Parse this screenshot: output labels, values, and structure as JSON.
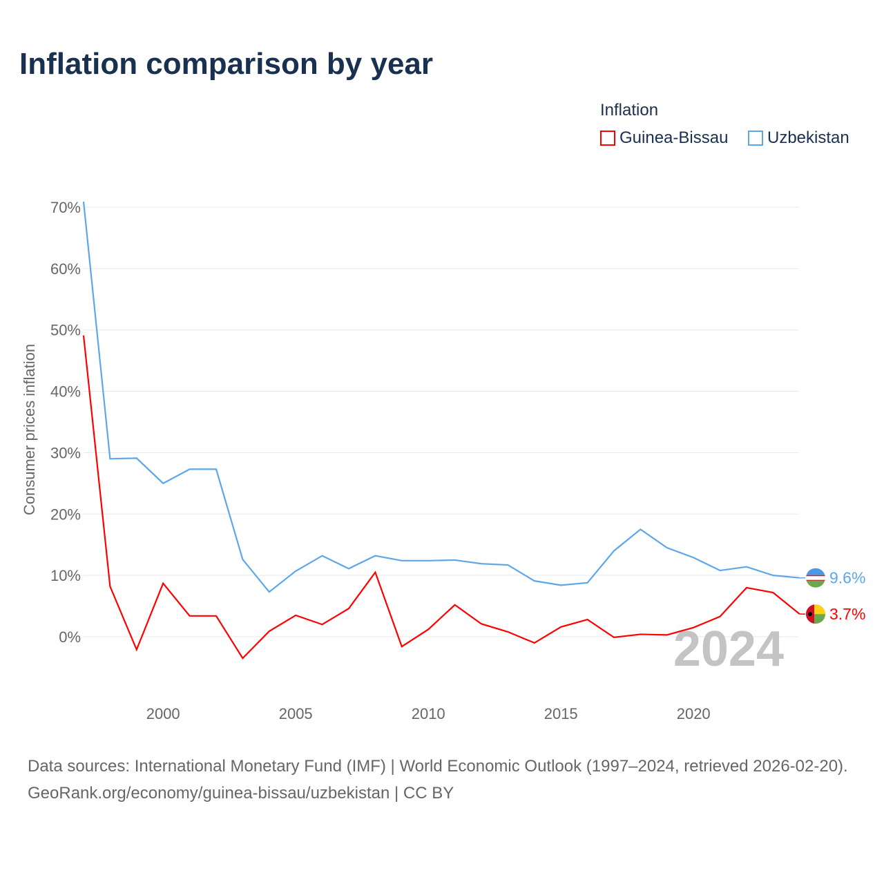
{
  "chart_data": {
    "type": "line",
    "title": "Inflation comparison by year",
    "ylabel": "Consumer prices inflation",
    "xlabel": "",
    "legend_title": "Inflation",
    "legend_position": "top-right",
    "ylim": [
      -10,
      70
    ],
    "xlim": [
      1997,
      2024
    ],
    "yticks": [
      "0%",
      "10%",
      "20%",
      "30%",
      "40%",
      "50%",
      "60%",
      "70%"
    ],
    "ytick_values": [
      0,
      10,
      20,
      30,
      40,
      50,
      60,
      70
    ],
    "xticks": [
      "2000",
      "2005",
      "2010",
      "2015",
      "2020"
    ],
    "xtick_values": [
      2000,
      2005,
      2010,
      2015,
      2020
    ],
    "x": [
      1997,
      1998,
      1999,
      2000,
      2001,
      2002,
      2003,
      2004,
      2005,
      2006,
      2007,
      2008,
      2009,
      2010,
      2011,
      2012,
      2013,
      2014,
      2015,
      2016,
      2017,
      2018,
      2019,
      2020,
      2021,
      2022,
      2023,
      2024
    ],
    "series": [
      {
        "name": "Guinea-Bissau",
        "color": "#ff0000",
        "end_label": "3.7%",
        "values": [
          49.1,
          8.2,
          -2.1,
          8.7,
          3.4,
          3.4,
          -3.5,
          0.9,
          3.5,
          2.0,
          4.6,
          10.5,
          -1.6,
          1.2,
          5.2,
          2.1,
          0.8,
          -1.0,
          1.6,
          2.8,
          -0.1,
          0.4,
          0.3,
          1.5,
          3.3,
          8.0,
          7.2,
          3.7
        ]
      },
      {
        "name": "Uzbekistan",
        "color": "#5ca6ec",
        "end_label": "9.6%",
        "values": [
          70.9,
          29.0,
          29.1,
          25.0,
          27.3,
          27.3,
          12.6,
          7.3,
          10.7,
          13.2,
          11.1,
          13.2,
          12.4,
          12.4,
          12.5,
          11.9,
          11.7,
          9.1,
          8.4,
          8.8,
          14.0,
          17.5,
          14.5,
          12.9,
          10.8,
          11.4,
          10.0,
          9.6
        ]
      }
    ],
    "year_watermark": "2024"
  },
  "footer": {
    "sources": "Data sources: International Monetary Fund (IMF) | World Economic Outlook (1997–2024, retrieved 2026-02-20).",
    "credit": "GeoRank.org/economy/guinea-bissau/uzbekistan | CC BY"
  }
}
